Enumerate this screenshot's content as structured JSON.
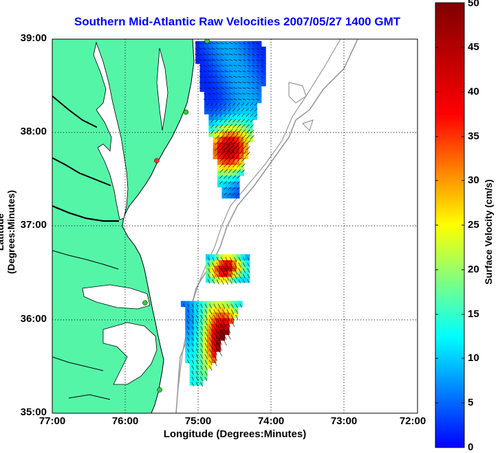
{
  "title": "Southern Mid-Atlantic Raw Velocities 2007/05/27 1400 GMT",
  "xaxis": {
    "label": "Longitude (Degrees:Minutes)",
    "ticks": [
      "77:00",
      "76:00",
      "75:00",
      "74:00",
      "73:00",
      "72:00"
    ],
    "range_deg_west": [
      77,
      72
    ]
  },
  "yaxis": {
    "label": "Latitude (Degrees:Minutes)",
    "ticks": [
      "39:00",
      "38:00",
      "37:00",
      "36:00",
      "35:00"
    ],
    "range_deg_north": [
      35,
      39
    ]
  },
  "colorbar": {
    "label": "Surface Velocity (cm/s)",
    "ticks": [
      "50",
      "45",
      "40",
      "35",
      "30",
      "25",
      "20",
      "15",
      "10",
      "5",
      "0"
    ],
    "range": [
      0,
      50
    ]
  },
  "colors": {
    "land": "#55f5a8",
    "grid": "#000000",
    "title": "#0000ff",
    "isobath": "#999999",
    "station": "#33cc33",
    "station_alert": "#ff3333"
  },
  "chart_data": {
    "type": "heatmap",
    "title": "Southern Mid-Atlantic Raw Velocities 2007/05/27 1400 GMT",
    "xlabel": "Longitude (Degrees:Minutes)",
    "ylabel": "Latitude (Degrees:Minutes)",
    "xlim": [
      -77,
      -72
    ],
    "ylim": [
      35,
      39
    ],
    "grid": true,
    "colorbar_label": "Surface Velocity (cm/s)",
    "colorbar_range": [
      0,
      50
    ],
    "velocity_regions": [
      {
        "name": "north",
        "lon": [
          -75.1,
          -74.0
        ],
        "lat": [
          37.3,
          38.95
        ],
        "speed_range_cm_s": [
          5,
          48
        ]
      },
      {
        "name": "middle",
        "lon": [
          -74.9,
          -74.3
        ],
        "lat": [
          36.4,
          36.7
        ],
        "speed_range_cm_s": [
          10,
          48
        ]
      },
      {
        "name": "south",
        "lon": [
          -75.3,
          -74.35
        ],
        "lat": [
          35.3,
          36.2
        ],
        "speed_range_cm_s": [
          8,
          50
        ]
      }
    ],
    "stations": [
      {
        "lon": -74.88,
        "lat": 38.98
      },
      {
        "lon": -75.17,
        "lat": 38.22
      },
      {
        "lon": -75.57,
        "lat": 37.7
      },
      {
        "lon": -75.73,
        "lat": 36.18
      },
      {
        "lon": -75.53,
        "lat": 35.25
      }
    ]
  }
}
